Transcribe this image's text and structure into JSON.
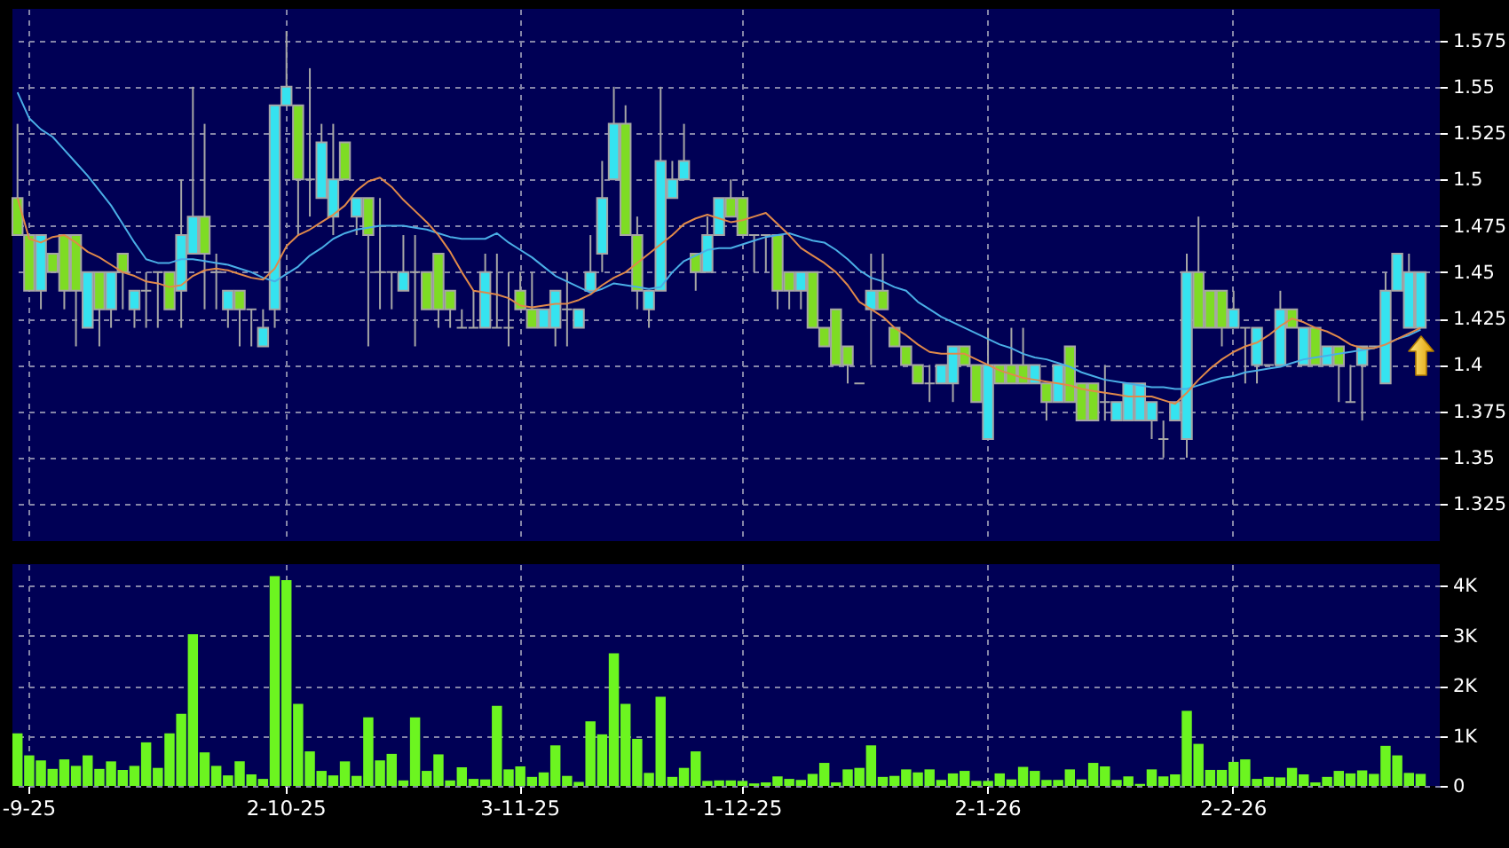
{
  "chart_data": [
    {
      "type": "candlestick",
      "categories": [
        null,
        null,
        null,
        null,
        null,
        null,
        null,
        null,
        null,
        null,
        null,
        null,
        null,
        null,
        null,
        null,
        null,
        null,
        null,
        null,
        null,
        null,
        null,
        null,
        null,
        null,
        null,
        null,
        null,
        null,
        null,
        null,
        null,
        null,
        null,
        null,
        null,
        null,
        null,
        null,
        null,
        null,
        null,
        null,
        null,
        null,
        null,
        null,
        null,
        null,
        null,
        null,
        null,
        null,
        null,
        null,
        null,
        null,
        null,
        null,
        null,
        null,
        null,
        null,
        null,
        null,
        null,
        null,
        null,
        null,
        null,
        null,
        null,
        null,
        null,
        null,
        null,
        null,
        null,
        null,
        null,
        null,
        null,
        null,
        null,
        null,
        null,
        null,
        null,
        null,
        null,
        null,
        null,
        null,
        null,
        null,
        null,
        null,
        null,
        null,
        null,
        null,
        null,
        null,
        null,
        null,
        null,
        null,
        null,
        null,
        null,
        null,
        null,
        null,
        null,
        null,
        null,
        null,
        null,
        null,
        null
      ],
      "ohlc": [
        [
          1.49,
          1.53,
          1.47,
          1.47
        ],
        [
          1.47,
          1.47,
          1.44,
          1.44
        ],
        [
          1.44,
          1.47,
          1.43,
          1.47
        ],
        [
          1.46,
          1.46,
          1.45,
          1.45
        ],
        [
          1.47,
          1.47,
          1.43,
          1.44
        ],
        [
          1.47,
          1.47,
          1.41,
          1.44
        ],
        [
          1.42,
          1.45,
          1.42,
          1.45
        ],
        [
          1.45,
          1.45,
          1.41,
          1.43
        ],
        [
          1.43,
          1.45,
          1.42,
          1.45
        ],
        [
          1.46,
          1.46,
          1.43,
          1.45
        ],
        [
          1.43,
          1.44,
          1.42,
          1.44
        ],
        [
          1.44,
          1.45,
          1.42,
          1.44
        ],
        [
          1.45,
          1.45,
          1.42,
          1.45
        ],
        [
          1.45,
          1.45,
          1.43,
          1.43
        ],
        [
          1.44,
          1.5,
          1.42,
          1.47
        ],
        [
          1.46,
          1.55,
          1.46,
          1.48
        ],
        [
          1.48,
          1.53,
          1.43,
          1.46
        ],
        [
          1.45,
          1.46,
          1.43,
          1.45
        ],
        [
          1.43,
          1.44,
          1.42,
          1.44
        ],
        [
          1.44,
          1.44,
          1.41,
          1.43
        ],
        [
          1.43,
          1.43,
          1.41,
          1.43
        ],
        [
          1.41,
          1.43,
          1.41,
          1.42
        ],
        [
          1.43,
          1.54,
          1.42,
          1.54
        ],
        [
          1.54,
          1.58,
          1.54,
          1.55
        ],
        [
          1.54,
          1.54,
          1.47,
          1.5
        ],
        [
          1.5,
          1.56,
          1.48,
          1.5
        ],
        [
          1.49,
          1.53,
          1.49,
          1.52
        ],
        [
          1.48,
          1.53,
          1.47,
          1.5
        ],
        [
          1.52,
          1.52,
          1.5,
          1.5
        ],
        [
          1.48,
          1.49,
          1.47,
          1.49
        ],
        [
          1.49,
          1.49,
          1.41,
          1.47
        ],
        [
          1.45,
          1.49,
          1.43,
          1.45
        ],
        [
          1.45,
          1.45,
          1.43,
          1.45
        ],
        [
          1.44,
          1.47,
          1.44,
          1.45
        ],
        [
          1.45,
          1.47,
          1.41,
          1.45
        ],
        [
          1.45,
          1.45,
          1.43,
          1.43
        ],
        [
          1.46,
          1.46,
          1.42,
          1.43
        ],
        [
          1.44,
          1.44,
          1.42,
          1.43
        ],
        [
          1.42,
          1.43,
          1.42,
          1.42
        ],
        [
          1.42,
          1.44,
          1.42,
          1.42
        ],
        [
          1.42,
          1.46,
          1.42,
          1.45
        ],
        [
          1.42,
          1.46,
          1.42,
          1.42
        ],
        [
          1.42,
          1.45,
          1.41,
          1.42
        ],
        [
          1.44,
          1.45,
          1.43,
          1.43
        ],
        [
          1.43,
          1.45,
          1.42,
          1.42
        ],
        [
          1.42,
          1.43,
          1.42,
          1.43
        ],
        [
          1.42,
          1.44,
          1.41,
          1.44
        ],
        [
          1.43,
          1.45,
          1.41,
          1.43
        ],
        [
          1.42,
          1.43,
          1.42,
          1.43
        ],
        [
          1.44,
          1.47,
          1.44,
          1.45
        ],
        [
          1.46,
          1.51,
          1.45,
          1.49
        ],
        [
          1.5,
          1.55,
          1.5,
          1.53
        ],
        [
          1.53,
          1.54,
          1.47,
          1.47
        ],
        [
          1.47,
          1.48,
          1.43,
          1.44
        ],
        [
          1.43,
          1.44,
          1.42,
          1.44
        ],
        [
          1.44,
          1.55,
          1.44,
          1.51
        ],
        [
          1.49,
          1.51,
          1.49,
          1.5
        ],
        [
          1.5,
          1.53,
          1.5,
          1.51
        ],
        [
          1.46,
          1.46,
          1.44,
          1.45
        ],
        [
          1.45,
          1.48,
          1.45,
          1.47
        ],
        [
          1.47,
          1.49,
          1.47,
          1.49
        ],
        [
          1.49,
          1.5,
          1.48,
          1.48
        ],
        [
          1.49,
          1.49,
          1.47,
          1.47
        ],
        [
          1.47,
          1.47,
          1.45,
          1.47
        ],
        [
          1.47,
          1.47,
          1.45,
          1.47
        ],
        [
          1.47,
          1.47,
          1.43,
          1.44
        ],
        [
          1.45,
          1.45,
          1.43,
          1.44
        ],
        [
          1.44,
          1.45,
          1.43,
          1.45
        ],
        [
          1.45,
          1.45,
          1.42,
          1.42
        ],
        [
          1.42,
          1.42,
          1.41,
          1.41
        ],
        [
          1.43,
          1.43,
          1.4,
          1.4
        ],
        [
          1.41,
          1.41,
          1.39,
          1.4
        ],
        [
          1.39,
          1.39,
          1.39,
          1.39
        ],
        [
          1.43,
          1.46,
          1.4,
          1.44
        ],
        [
          1.44,
          1.46,
          1.43,
          1.43
        ],
        [
          1.42,
          1.42,
          1.41,
          1.41
        ],
        [
          1.41,
          1.41,
          1.4,
          1.4
        ],
        [
          1.4,
          1.4,
          1.39,
          1.39
        ],
        [
          1.39,
          1.4,
          1.38,
          1.39
        ],
        [
          1.39,
          1.4,
          1.39,
          1.4
        ],
        [
          1.39,
          1.41,
          1.38,
          1.41
        ],
        [
          1.41,
          1.41,
          1.4,
          1.4
        ],
        [
          1.4,
          1.4,
          1.38,
          1.38
        ],
        [
          1.36,
          1.42,
          1.36,
          1.4
        ],
        [
          1.4,
          1.4,
          1.39,
          1.39
        ],
        [
          1.4,
          1.42,
          1.39,
          1.39
        ],
        [
          1.4,
          1.42,
          1.39,
          1.39
        ],
        [
          1.39,
          1.4,
          1.39,
          1.4
        ],
        [
          1.39,
          1.39,
          1.37,
          1.38
        ],
        [
          1.38,
          1.4,
          1.38,
          1.4
        ],
        [
          1.41,
          1.41,
          1.38,
          1.38
        ],
        [
          1.39,
          1.39,
          1.37,
          1.37
        ],
        [
          1.39,
          1.39,
          1.37,
          1.37
        ],
        [
          1.38,
          1.4,
          1.37,
          1.38
        ],
        [
          1.37,
          1.38,
          1.37,
          1.38
        ],
        [
          1.37,
          1.39,
          1.37,
          1.39
        ],
        [
          1.37,
          1.39,
          1.37,
          1.39
        ],
        [
          1.37,
          1.38,
          1.36,
          1.38
        ],
        [
          1.36,
          1.37,
          1.35,
          1.36
        ],
        [
          1.37,
          1.38,
          1.37,
          1.38
        ],
        [
          1.36,
          1.46,
          1.35,
          1.45
        ],
        [
          1.45,
          1.48,
          1.42,
          1.42
        ],
        [
          1.44,
          1.44,
          1.42,
          1.42
        ],
        [
          1.44,
          1.44,
          1.41,
          1.42
        ],
        [
          1.42,
          1.44,
          1.42,
          1.43
        ],
        [
          1.42,
          1.42,
          1.39,
          1.42
        ],
        [
          1.4,
          1.42,
          1.39,
          1.42
        ],
        [
          1.4,
          1.4,
          1.4,
          1.4
        ],
        [
          1.4,
          1.44,
          1.4,
          1.43
        ],
        [
          1.43,
          1.43,
          1.42,
          1.42
        ],
        [
          1.4,
          1.42,
          1.4,
          1.42
        ],
        [
          1.42,
          1.42,
          1.4,
          1.4
        ],
        [
          1.4,
          1.41,
          1.4,
          1.41
        ],
        [
          1.41,
          1.41,
          1.38,
          1.4
        ],
        [
          1.38,
          1.4,
          1.38,
          1.38
        ],
        [
          1.4,
          1.41,
          1.37,
          1.41
        ],
        [
          1.41,
          1.41,
          1.41,
          1.41
        ],
        [
          1.39,
          1.45,
          1.39,
          1.44
        ],
        [
          1.44,
          1.46,
          1.44,
          1.46
        ],
        [
          1.42,
          1.46,
          1.42,
          1.45
        ],
        [
          1.42,
          1.45,
          1.42,
          1.45
        ]
      ],
      "colors": [
        "#7edc24",
        "#7edc24",
        "#35e3f0",
        "#7edc24",
        "#7edc24",
        "#7edc24",
        "#35e3f0",
        "#7edc24",
        "#35e3f0",
        "#7edc24",
        "#35e3f0",
        "#a6a6a6",
        "#a6a6a6",
        "#7edc24",
        "#35e3f0",
        "#35e3f0",
        "#7edc24",
        "#a6a6a6",
        "#35e3f0",
        "#7edc24",
        "#a6a6a6",
        "#35e3f0",
        "#35e3f0",
        "#35e3f0",
        "#7edc24",
        "#a6a6a6",
        "#35e3f0",
        "#35e3f0",
        "#7edc24",
        "#35e3f0",
        "#7edc24",
        "#a6a6a6",
        "#a6a6a6",
        "#35e3f0",
        "#a6a6a6",
        "#7edc24",
        "#7edc24",
        "#7edc24",
        "#a6a6a6",
        "#a6a6a6",
        "#35e3f0",
        "#a6a6a6",
        "#a6a6a6",
        "#7edc24",
        "#7edc24",
        "#35e3f0",
        "#35e3f0",
        "#a6a6a6",
        "#35e3f0",
        "#35e3f0",
        "#35e3f0",
        "#35e3f0",
        "#7edc24",
        "#7edc24",
        "#35e3f0",
        "#35e3f0",
        "#35e3f0",
        "#35e3f0",
        "#7edc24",
        "#35e3f0",
        "#35e3f0",
        "#7edc24",
        "#7edc24",
        "#a6a6a6",
        "#a6a6a6",
        "#7edc24",
        "#7edc24",
        "#35e3f0",
        "#7edc24",
        "#7edc24",
        "#7edc24",
        "#7edc24",
        "#a6a6a6",
        "#35e3f0",
        "#7edc24",
        "#7edc24",
        "#7edc24",
        "#7edc24",
        "#a6a6a6",
        "#35e3f0",
        "#35e3f0",
        "#7edc24",
        "#7edc24",
        "#35e3f0",
        "#7edc24",
        "#7edc24",
        "#7edc24",
        "#35e3f0",
        "#7edc24",
        "#35e3f0",
        "#7edc24",
        "#7edc24",
        "#7edc24",
        "#a6a6a6",
        "#35e3f0",
        "#35e3f0",
        "#35e3f0",
        "#35e3f0",
        "#a6a6a6",
        "#35e3f0",
        "#35e3f0",
        "#7edc24",
        "#7edc24",
        "#7edc24",
        "#35e3f0",
        "#a6a6a6",
        "#35e3f0",
        "#a6a6a6",
        "#35e3f0",
        "#7edc24",
        "#35e3f0",
        "#7edc24",
        "#35e3f0",
        "#7edc24",
        "#a6a6a6",
        "#35e3f0",
        "#a6a6a6",
        "#35e3f0",
        "#35e3f0",
        "#35e3f0",
        "#35e3f0"
      ],
      "series": [
        {
          "type": "line",
          "color": "#4aaee6",
          "values": [
            1.547,
            1.533,
            1.527,
            1.523,
            1.516,
            1.509,
            1.502,
            1.494,
            1.486,
            1.476,
            1.466,
            1.457,
            1.455,
            1.455,
            1.457,
            1.457,
            1.456,
            1.455,
            1.454,
            1.452,
            1.45,
            1.447,
            1.445,
            1.449,
            1.453,
            1.459,
            1.463,
            1.468,
            1.471,
            1.473,
            1.474,
            1.475,
            1.475,
            1.475,
            1.474,
            1.473,
            1.471,
            1.469,
            1.468,
            1.468,
            1.468,
            1.471,
            1.466,
            1.462,
            1.458,
            1.453,
            1.448,
            1.445,
            1.442,
            1.439,
            1.441,
            1.444,
            1.443,
            1.442,
            1.441,
            1.442,
            1.45,
            1.456,
            1.459,
            1.462,
            1.463,
            1.463,
            1.465,
            1.467,
            1.469,
            1.47,
            1.471,
            1.469,
            1.467,
            1.466,
            1.462,
            1.457,
            1.451,
            1.447,
            1.445,
            1.442,
            1.44,
            1.434,
            1.43,
            1.426,
            1.423,
            1.42,
            1.417,
            1.414,
            1.411,
            1.409,
            1.406,
            1.404,
            1.403,
            1.401,
            1.399,
            1.396,
            1.394,
            1.392,
            1.391,
            1.39,
            1.389,
            1.388,
            1.388,
            1.387,
            1.387,
            1.389,
            1.391,
            1.393,
            1.394,
            1.396,
            1.397,
            1.398,
            1.399,
            1.401,
            1.403,
            1.404,
            1.405,
            1.406,
            1.407,
            1.408,
            1.409,
            1.411,
            1.414,
            1.416,
            1.419
          ]
        },
        {
          "type": "line",
          "color": "#e0894a",
          "values": [
            1.49,
            1.468,
            1.466,
            1.469,
            1.47,
            1.466,
            1.461,
            1.458,
            1.454,
            1.45,
            1.448,
            1.445,
            1.444,
            1.442,
            1.443,
            1.448,
            1.451,
            1.452,
            1.451,
            1.449,
            1.447,
            1.446,
            1.452,
            1.464,
            1.47,
            1.473,
            1.477,
            1.481,
            1.486,
            1.494,
            1.499,
            1.501,
            1.496,
            1.489,
            1.483,
            1.477,
            1.47,
            1.461,
            1.45,
            1.44,
            1.439,
            1.438,
            1.436,
            1.432,
            1.431,
            1.432,
            1.433,
            1.433,
            1.435,
            1.438,
            1.443,
            1.447,
            1.45,
            1.455,
            1.46,
            1.465,
            1.47,
            1.476,
            1.479,
            1.481,
            1.479,
            1.477,
            1.478,
            1.48,
            1.482,
            1.476,
            1.47,
            1.463,
            1.459,
            1.455,
            1.45,
            1.443,
            1.434,
            1.43,
            1.426,
            1.42,
            1.416,
            1.411,
            1.407,
            1.406,
            1.406,
            1.406,
            1.403,
            1.4,
            1.397,
            1.395,
            1.393,
            1.392,
            1.391,
            1.39,
            1.389,
            1.387,
            1.386,
            1.385,
            1.384,
            1.383,
            1.383,
            1.383,
            1.381,
            1.379,
            1.385,
            1.392,
            1.398,
            1.403,
            1.407,
            1.41,
            1.412,
            1.416,
            1.421,
            1.425,
            1.423,
            1.42,
            1.418,
            1.415,
            1.411,
            1.409,
            1.409,
            1.411,
            1.414,
            1.417,
            1.42
          ]
        }
      ],
      "ylim": [
        1.305,
        1.592
      ],
      "yticks": [
        1.325,
        1.35,
        1.375,
        1.4,
        1.425,
        1.45,
        1.475,
        1.5,
        1.525,
        1.55,
        1.575
      ],
      "grid": true,
      "tick_labels": "y"
    },
    {
      "type": "bar",
      "categories": [
        null,
        "-9-25",
        null,
        null,
        null,
        null,
        null,
        null,
        null,
        null,
        null,
        null,
        null,
        null,
        null,
        null,
        null,
        null,
        null,
        null,
        null,
        null,
        null,
        "2-10-25",
        null,
        null,
        null,
        null,
        null,
        null,
        null,
        null,
        null,
        null,
        null,
        null,
        null,
        null,
        null,
        null,
        null,
        null,
        null,
        "3-11-25",
        null,
        null,
        null,
        null,
        null,
        null,
        null,
        null,
        null,
        null,
        null,
        null,
        null,
        null,
        null,
        null,
        null,
        null,
        "1-12-25",
        null,
        null,
        null,
        null,
        null,
        null,
        null,
        null,
        null,
        null,
        null,
        null,
        null,
        null,
        null,
        null,
        null,
        null,
        null,
        null,
        "2-1-26",
        null,
        null,
        null,
        null,
        null,
        null,
        null,
        null,
        null,
        null,
        null,
        null,
        null,
        null,
        null,
        null,
        null,
        null,
        null,
        null,
        "2-2-26",
        null,
        null,
        null,
        null,
        null,
        null,
        null,
        null,
        null,
        null,
        null,
        null,
        null,
        null,
        null,
        null
      ],
      "values": [
        1050,
        610,
        510,
        340,
        530,
        400,
        610,
        340,
        490,
        320,
        400,
        870,
        360,
        1050,
        1440,
        3030,
        670,
        400,
        210,
        490,
        230,
        140,
        4190,
        4110,
        1640,
        690,
        300,
        210,
        490,
        200,
        1370,
        510,
        640,
        110,
        1370,
        300,
        630,
        110,
        370,
        140,
        130,
        1600,
        330,
        390,
        180,
        270,
        810,
        200,
        80,
        1290,
        1030,
        2650,
        1640,
        940,
        260,
        1780,
        180,
        360,
        690,
        100,
        110,
        110,
        100,
        50,
        70,
        190,
        140,
        120,
        240,
        460,
        70,
        330,
        360,
        810,
        180,
        200,
        330,
        270,
        330,
        120,
        250,
        300,
        100,
        100,
        250,
        130,
        380,
        300,
        120,
        120,
        330,
        130,
        460,
        390,
        120,
        190,
        40,
        330,
        190,
        230,
        1500,
        840,
        320,
        320,
        480,
        530,
        140,
        180,
        170,
        360,
        230,
        70,
        180,
        300,
        250,
        310,
        240,
        800,
        610,
        260,
        240
      ],
      "color": "#6cf520",
      "ylim": [
        0,
        4430
      ],
      "yticks": [
        0,
        {
          "value": 1000,
          "label": "1K"
        },
        {
          "value": 2000,
          "label": "2K"
        },
        {
          "value": 3000,
          "label": "3K"
        },
        {
          "value": 4000,
          "label": "4K"
        }
      ],
      "grid": true
    }
  ]
}
